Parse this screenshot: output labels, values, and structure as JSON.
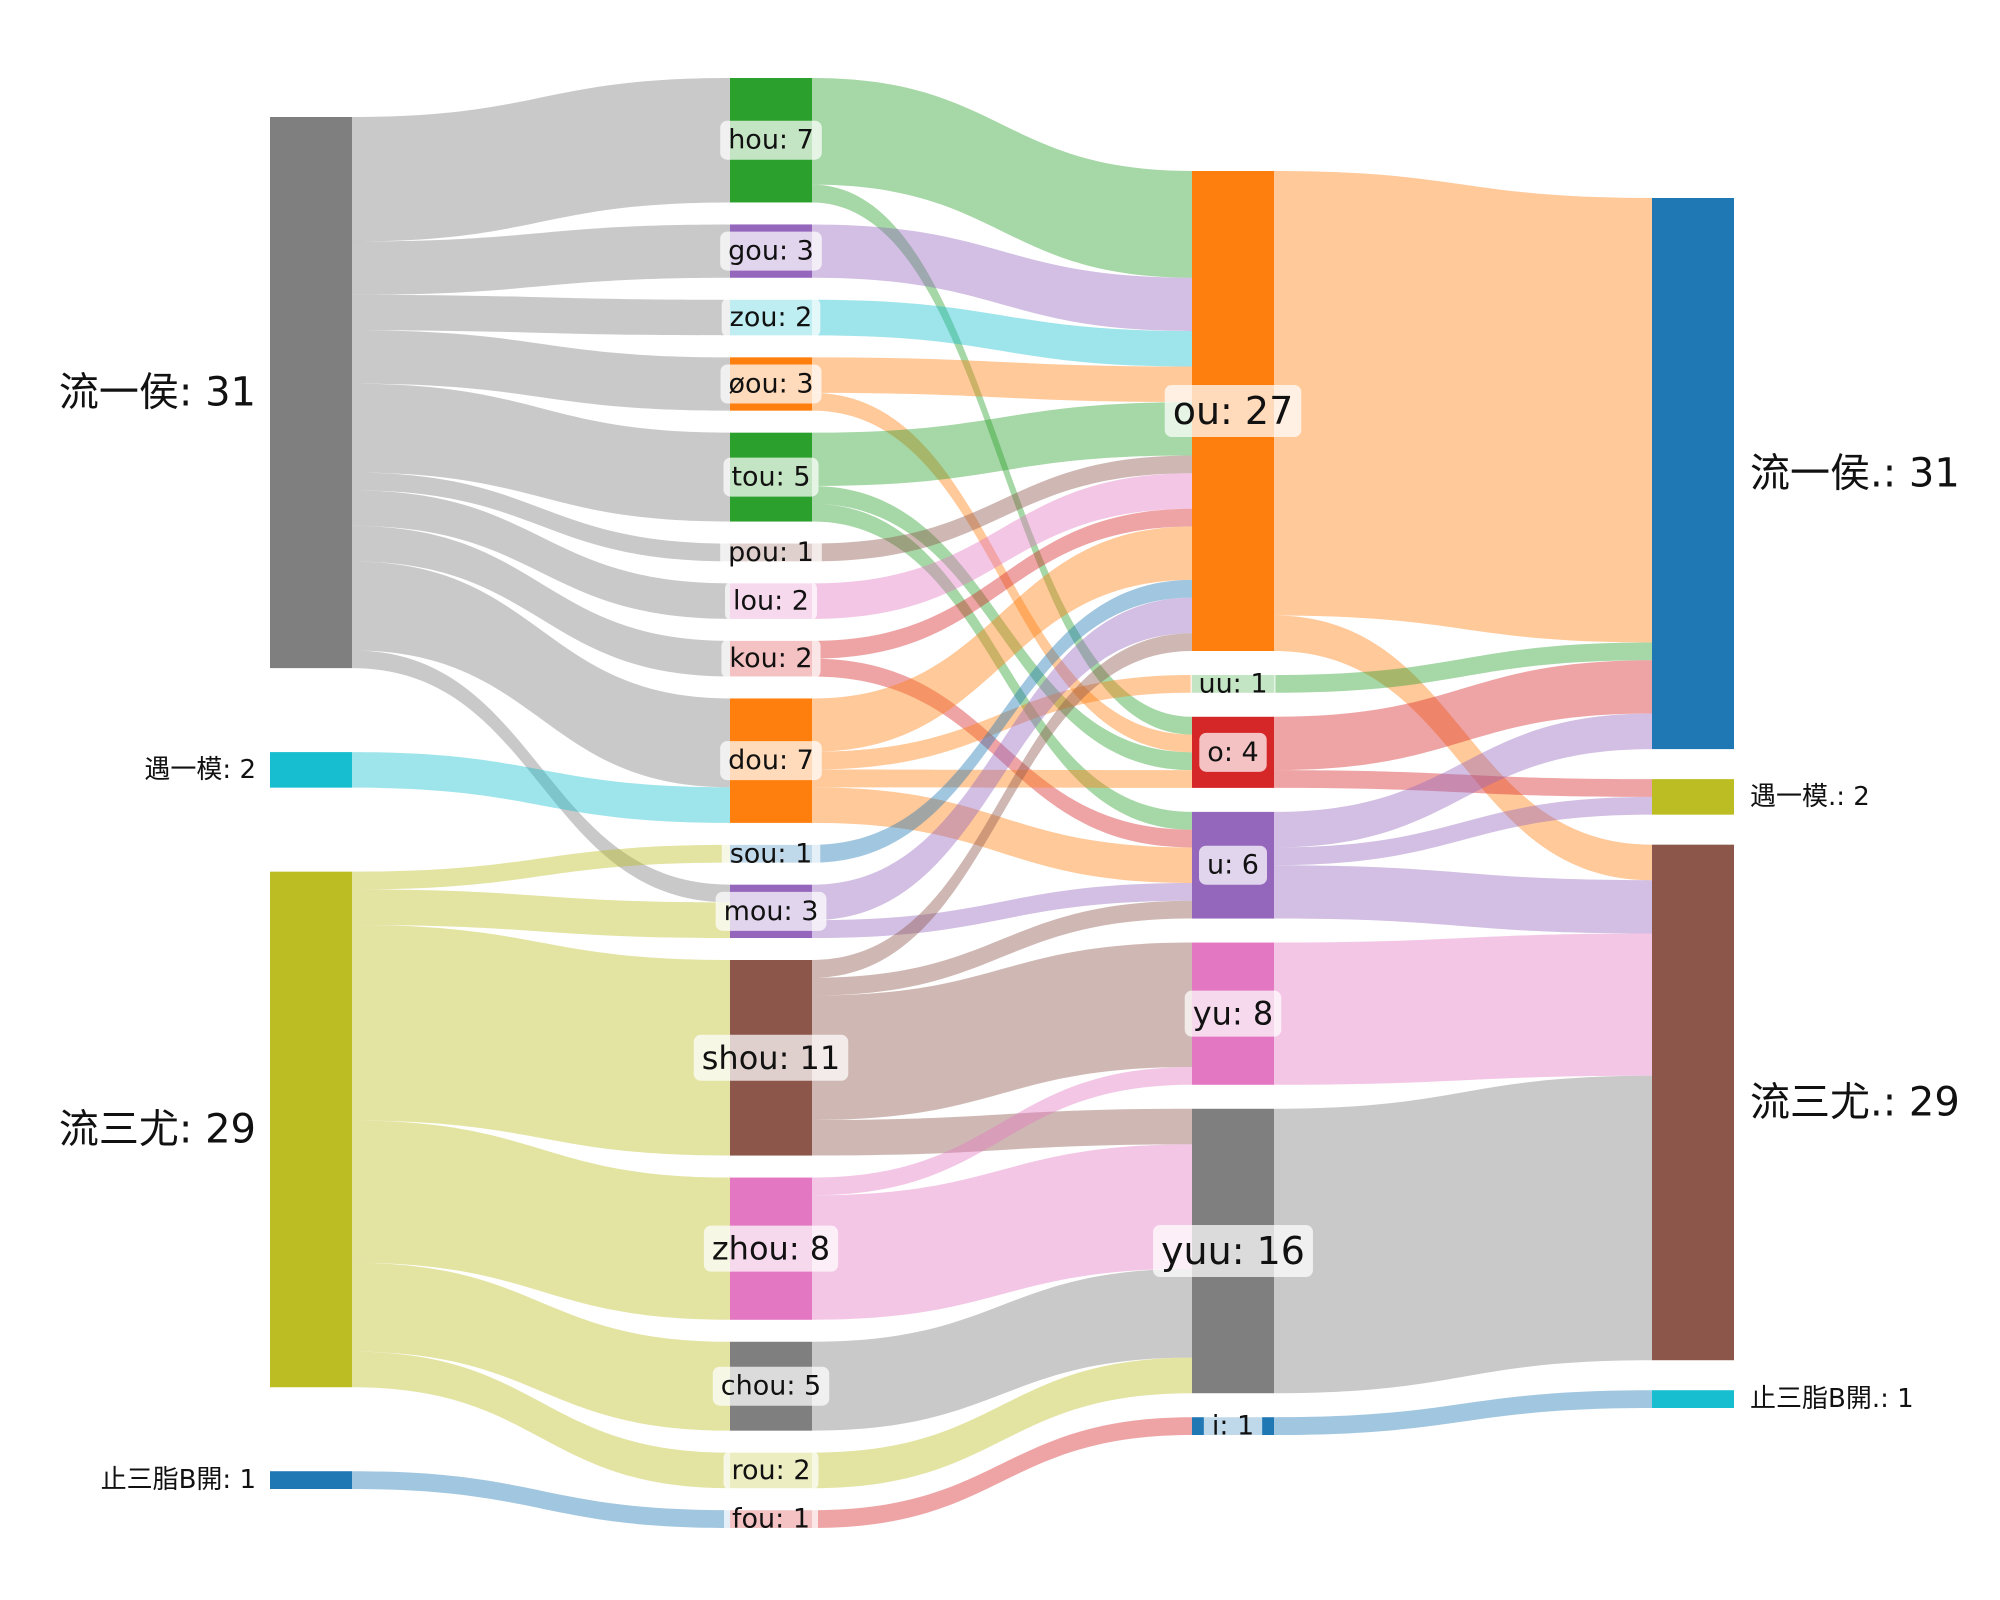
{
  "chart_data": {
    "type": "sankey",
    "nodes": [
      {
        "id": "L_houshi",
        "column": 0,
        "label": "流一侯: 31",
        "value": 31,
        "color": "#7f7f7f"
      },
      {
        "id": "L_yumo",
        "column": 0,
        "label": "遇一模: 2",
        "value": 2,
        "color": "#17becf"
      },
      {
        "id": "L_you",
        "column": 0,
        "label": "流三尤: 29",
        "value": 29,
        "color": "#bcbd22"
      },
      {
        "id": "L_zhi",
        "column": 0,
        "label": "止三脂B開: 1",
        "value": 1,
        "color": "#1f77b4"
      },
      {
        "id": "hou",
        "column": 1,
        "label": "hou: 7",
        "value": 7,
        "color": "#2ca02c"
      },
      {
        "id": "gou",
        "column": 1,
        "label": "gou: 3",
        "value": 3,
        "color": "#9467bd"
      },
      {
        "id": "zou",
        "column": 1,
        "label": "zou: 2",
        "value": 2,
        "color": "#17becf"
      },
      {
        "id": "0ou",
        "column": 1,
        "label": "øou: 3",
        "value": 3,
        "color": "#ff7f0e"
      },
      {
        "id": "tou",
        "column": 1,
        "label": "tou: 5",
        "value": 5,
        "color": "#2ca02c"
      },
      {
        "id": "pou",
        "column": 1,
        "label": "pou: 1",
        "value": 1,
        "color": "#8c564b"
      },
      {
        "id": "lou",
        "column": 1,
        "label": "lou: 2",
        "value": 2,
        "color": "#e377c2"
      },
      {
        "id": "kou",
        "column": 1,
        "label": "kou: 2",
        "value": 2,
        "color": "#d62728"
      },
      {
        "id": "dou",
        "column": 1,
        "label": "dou: 7",
        "value": 7,
        "color": "#ff7f0e"
      },
      {
        "id": "sou",
        "column": 1,
        "label": "sou: 1",
        "value": 1,
        "color": "#1f77b4"
      },
      {
        "id": "mou",
        "column": 1,
        "label": "mou: 3",
        "value": 3,
        "color": "#9467bd"
      },
      {
        "id": "shou",
        "column": 1,
        "label": "shou: 11",
        "value": 11,
        "color": "#8c564b"
      },
      {
        "id": "zhou",
        "column": 1,
        "label": "zhou: 8",
        "value": 8,
        "color": "#e377c2"
      },
      {
        "id": "chou",
        "column": 1,
        "label": "chou: 5",
        "value": 5,
        "color": "#7f7f7f"
      },
      {
        "id": "rou",
        "column": 1,
        "label": "rou: 2",
        "value": 2,
        "color": "#bcbd22"
      },
      {
        "id": "fou",
        "column": 1,
        "label": "fou: 1",
        "value": 1,
        "color": "#d62728"
      },
      {
        "id": "ou",
        "column": 2,
        "label": "ou: 27",
        "value": 27,
        "color": "#ff7f0e"
      },
      {
        "id": "uu",
        "column": 2,
        "label": "uu: 1",
        "value": 1,
        "color": "#2ca02c"
      },
      {
        "id": "o",
        "column": 2,
        "label": "o: 4",
        "value": 4,
        "color": "#d62728"
      },
      {
        "id": "u",
        "column": 2,
        "label": "u: 6",
        "value": 6,
        "color": "#9467bd"
      },
      {
        "id": "yu",
        "column": 2,
        "label": "yu: 8",
        "value": 8,
        "color": "#e377c2"
      },
      {
        "id": "yuu",
        "column": 2,
        "label": "yuu: 16",
        "value": 16,
        "color": "#7f7f7f"
      },
      {
        "id": "i",
        "column": 2,
        "label": "i: 1",
        "value": 1,
        "color": "#1f77b4"
      },
      {
        "id": "R_houshi",
        "column": 3,
        "label": "流一侯.: 31",
        "value": 31,
        "color": "#1f77b4"
      },
      {
        "id": "R_yumo",
        "column": 3,
        "label": "遇一模.: 2",
        "value": 2,
        "color": "#bcbd22"
      },
      {
        "id": "R_you",
        "column": 3,
        "label": "流三尤.: 29",
        "value": 29,
        "color": "#8c564b"
      },
      {
        "id": "R_zhi",
        "column": 3,
        "label": "止三脂B開.: 1",
        "value": 1,
        "color": "#17becf"
      }
    ],
    "links": [
      {
        "source": "L_houshi",
        "target": "hou",
        "value": 7
      },
      {
        "source": "L_houshi",
        "target": "gou",
        "value": 3
      },
      {
        "source": "L_houshi",
        "target": "zou",
        "value": 2
      },
      {
        "source": "L_houshi",
        "target": "0ou",
        "value": 3
      },
      {
        "source": "L_houshi",
        "target": "tou",
        "value": 5
      },
      {
        "source": "L_houshi",
        "target": "pou",
        "value": 1
      },
      {
        "source": "L_houshi",
        "target": "lou",
        "value": 2
      },
      {
        "source": "L_houshi",
        "target": "kou",
        "value": 2
      },
      {
        "source": "L_houshi",
        "target": "dou",
        "value": 5
      },
      {
        "source": "L_houshi",
        "target": "mou",
        "value": 1
      },
      {
        "source": "L_yumo",
        "target": "dou",
        "value": 2
      },
      {
        "source": "L_you",
        "target": "sou",
        "value": 1
      },
      {
        "source": "L_you",
        "target": "mou",
        "value": 2
      },
      {
        "source": "L_you",
        "target": "shou",
        "value": 11
      },
      {
        "source": "L_you",
        "target": "zhou",
        "value": 8
      },
      {
        "source": "L_you",
        "target": "chou",
        "value": 5
      },
      {
        "source": "L_you",
        "target": "rou",
        "value": 2
      },
      {
        "source": "L_zhi",
        "target": "fou",
        "value": 1
      },
      {
        "source": "hou",
        "target": "ou",
        "value": 6
      },
      {
        "source": "hou",
        "target": "o",
        "value": 1
      },
      {
        "source": "gou",
        "target": "ou",
        "value": 3
      },
      {
        "source": "zou",
        "target": "ou",
        "value": 2
      },
      {
        "source": "0ou",
        "target": "ou",
        "value": 2
      },
      {
        "source": "0ou",
        "target": "o",
        "value": 1
      },
      {
        "source": "tou",
        "target": "ou",
        "value": 3
      },
      {
        "source": "tou",
        "target": "o",
        "value": 1
      },
      {
        "source": "tou",
        "target": "u",
        "value": 1
      },
      {
        "source": "pou",
        "target": "ou",
        "value": 1
      },
      {
        "source": "lou",
        "target": "ou",
        "value": 2
      },
      {
        "source": "kou",
        "target": "ou",
        "value": 1
      },
      {
        "source": "kou",
        "target": "u",
        "value": 1
      },
      {
        "source": "dou",
        "target": "ou",
        "value": 3
      },
      {
        "source": "dou",
        "target": "uu",
        "value": 1
      },
      {
        "source": "dou",
        "target": "o",
        "value": 1
      },
      {
        "source": "dou",
        "target": "u",
        "value": 2
      },
      {
        "source": "sou",
        "target": "ou",
        "value": 1
      },
      {
        "source": "mou",
        "target": "ou",
        "value": 2
      },
      {
        "source": "mou",
        "target": "u",
        "value": 1
      },
      {
        "source": "shou",
        "target": "ou",
        "value": 1
      },
      {
        "source": "shou",
        "target": "u",
        "value": 1
      },
      {
        "source": "shou",
        "target": "yu",
        "value": 7
      },
      {
        "source": "shou",
        "target": "yuu",
        "value": 2
      },
      {
        "source": "zhou",
        "target": "yu",
        "value": 1
      },
      {
        "source": "zhou",
        "target": "yuu",
        "value": 7
      },
      {
        "source": "chou",
        "target": "yuu",
        "value": 5
      },
      {
        "source": "rou",
        "target": "yuu",
        "value": 2
      },
      {
        "source": "fou",
        "target": "i",
        "value": 1
      },
      {
        "source": "ou",
        "target": "R_houshi",
        "value": 25
      },
      {
        "source": "ou",
        "target": "R_you",
        "value": 2
      },
      {
        "source": "uu",
        "target": "R_houshi",
        "value": 1
      },
      {
        "source": "o",
        "target": "R_houshi",
        "value": 3
      },
      {
        "source": "o",
        "target": "R_yumo",
        "value": 1
      },
      {
        "source": "u",
        "target": "R_houshi",
        "value": 2
      },
      {
        "source": "u",
        "target": "R_yumo",
        "value": 1
      },
      {
        "source": "u",
        "target": "R_you",
        "value": 3
      },
      {
        "source": "yu",
        "target": "R_you",
        "value": 8
      },
      {
        "source": "yuu",
        "target": "R_you",
        "value": 16
      },
      {
        "source": "i",
        "target": "R_zhi",
        "value": 1
      }
    ]
  }
}
